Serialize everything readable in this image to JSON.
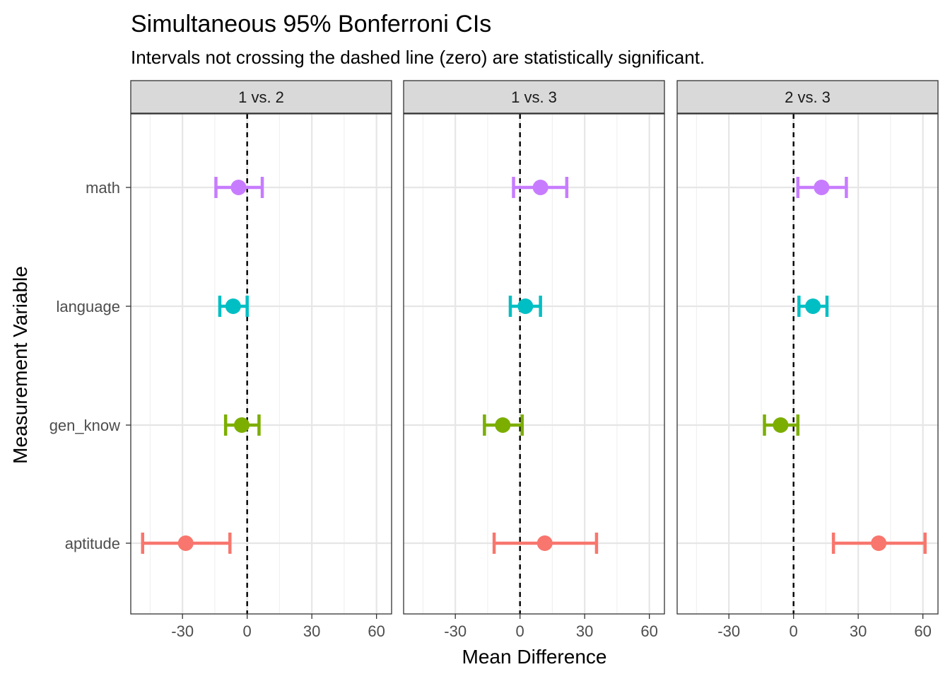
{
  "chart_data": {
    "type": "errorbar",
    "title": "Simultaneous 95% Bonferroni CIs",
    "subtitle": "Intervals not crossing the dashed line (zero) are statistically significant.",
    "xlabel": "Mean Difference",
    "ylabel": "Measurement Variable",
    "xlim": [
      -54,
      67
    ],
    "x_ticks": [
      -30,
      0,
      30,
      60
    ],
    "x_tick_labels": [
      "-30",
      "0",
      "30",
      "60"
    ],
    "categories": [
      "math",
      "language",
      "gen_know",
      "aptitude"
    ],
    "reference_line": 0,
    "colors": {
      "math": "#C77CFF",
      "language": "#00BFC4",
      "gen_know": "#7CAE00",
      "aptitude": "#F8766D"
    },
    "panels": [
      {
        "label": "1 vs. 2",
        "points": [
          {
            "var": "math",
            "estimate": -4,
            "lower": -14.5,
            "upper": 7
          },
          {
            "var": "language",
            "estimate": -6.5,
            "lower": -12.7,
            "upper": 0
          },
          {
            "var": "gen_know",
            "estimate": -2.5,
            "lower": -10,
            "upper": 5.5
          },
          {
            "var": "aptitude",
            "estimate": -28.5,
            "lower": -48.5,
            "upper": -8
          }
        ]
      },
      {
        "label": "1 vs. 3",
        "points": [
          {
            "var": "math",
            "estimate": 9.5,
            "lower": -3,
            "upper": 21.7
          },
          {
            "var": "language",
            "estimate": 2.5,
            "lower": -4.5,
            "upper": 9.5
          },
          {
            "var": "gen_know",
            "estimate": -8,
            "lower": -16.5,
            "upper": 1
          },
          {
            "var": "aptitude",
            "estimate": 11.5,
            "lower": -12,
            "upper": 35.5
          }
        ]
      },
      {
        "label": "2 vs. 3",
        "points": [
          {
            "var": "math",
            "estimate": 13,
            "lower": 2,
            "upper": 24.5
          },
          {
            "var": "language",
            "estimate": 9,
            "lower": 2.5,
            "upper": 15.5
          },
          {
            "var": "gen_know",
            "estimate": -6,
            "lower": -13.5,
            "upper": 2
          },
          {
            "var": "aptitude",
            "estimate": 39.5,
            "lower": 18.5,
            "upper": 61
          }
        ]
      }
    ]
  }
}
